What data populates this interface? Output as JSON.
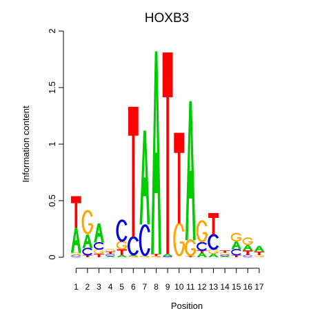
{
  "chart_data": {
    "type": "sequence-logo",
    "title": "HOXB3",
    "xlabel": "Position",
    "ylabel": "Information content",
    "ylim": [
      0,
      2
    ],
    "yticks": [
      0,
      0.5,
      1,
      1.5,
      2
    ],
    "ytick_labels": [
      "0",
      "0.5",
      "1",
      "1.5",
      "2"
    ],
    "grid": false,
    "colors": {
      "A": "#00cc00",
      "C": "#0000ee",
      "G": "#ffa500",
      "T": "#ff0000"
    },
    "positions": [
      {
        "position": "1",
        "letters": [
          [
            "C",
            0.02
          ],
          [
            "G",
            0.02
          ],
          [
            "A",
            0.22
          ],
          [
            "T",
            0.28
          ]
        ]
      },
      {
        "position": "2",
        "letters": [
          [
            "T",
            0.02
          ],
          [
            "C",
            0.06
          ],
          [
            "A",
            0.12
          ],
          [
            "G",
            0.21
          ]
        ]
      },
      {
        "position": "3",
        "letters": [
          [
            "T",
            0.03
          ],
          [
            "G",
            0.04
          ],
          [
            "C",
            0.06
          ],
          [
            "A",
            0.17
          ]
        ]
      },
      {
        "position": "4",
        "letters": [
          [
            "A",
            0.01
          ],
          [
            "C",
            0.02
          ],
          [
            "T",
            0.02
          ],
          [
            "G",
            0.02
          ]
        ]
      },
      {
        "position": "5",
        "letters": [
          [
            "A",
            0.02
          ],
          [
            "T",
            0.05
          ],
          [
            "G",
            0.07
          ],
          [
            "C",
            0.19
          ]
        ]
      },
      {
        "position": "6",
        "letters": [
          [
            "G",
            0.01
          ],
          [
            "A",
            0.01
          ],
          [
            "C",
            0.16
          ],
          [
            "T",
            1.15
          ]
        ]
      },
      {
        "position": "7",
        "letters": [
          [
            "G",
            0.01
          ],
          [
            "C",
            0.28
          ],
          [
            "A",
            0.83
          ]
        ]
      },
      {
        "position": "8",
        "letters": [
          [
            "G",
            0.01
          ],
          [
            "T",
            0.02
          ],
          [
            "A",
            1.79
          ]
        ]
      },
      {
        "position": "9",
        "letters": [
          [
            "C",
            0.01
          ],
          [
            "A",
            0.02
          ],
          [
            "T",
            1.78
          ]
        ]
      },
      {
        "position": "10",
        "letters": [
          [
            "G",
            0.3
          ],
          [
            "T",
            0.8
          ]
        ]
      },
      {
        "position": "11",
        "letters": [
          [
            "T",
            0.01
          ],
          [
            "G",
            0.14
          ],
          [
            "A",
            1.23
          ]
        ]
      },
      {
        "position": "12",
        "letters": [
          [
            "A",
            0.04
          ],
          [
            "T",
            0.02
          ],
          [
            "C",
            0.07
          ],
          [
            "G",
            0.19
          ]
        ]
      },
      {
        "position": "13",
        "letters": [
          [
            "A",
            0.03
          ],
          [
            "G",
            0.04
          ],
          [
            "C",
            0.13
          ],
          [
            "T",
            0.19
          ]
        ]
      },
      {
        "position": "14",
        "letters": [
          [
            "A",
            0.01
          ],
          [
            "C",
            0.01
          ],
          [
            "G",
            0.02
          ],
          [
            "T",
            0.02
          ]
        ]
      },
      {
        "position": "15",
        "letters": [
          [
            "T",
            0.02
          ],
          [
            "C",
            0.05
          ],
          [
            "A",
            0.07
          ],
          [
            "G",
            0.07
          ]
        ]
      },
      {
        "position": "16",
        "letters": [
          [
            "C",
            0.02
          ],
          [
            "T",
            0.04
          ],
          [
            "A",
            0.05
          ],
          [
            "G",
            0.06
          ]
        ]
      },
      {
        "position": "17",
        "letters": [
          [
            "G",
            0.02
          ],
          [
            "T",
            0.03
          ],
          [
            "A",
            0.05
          ]
        ]
      }
    ]
  }
}
